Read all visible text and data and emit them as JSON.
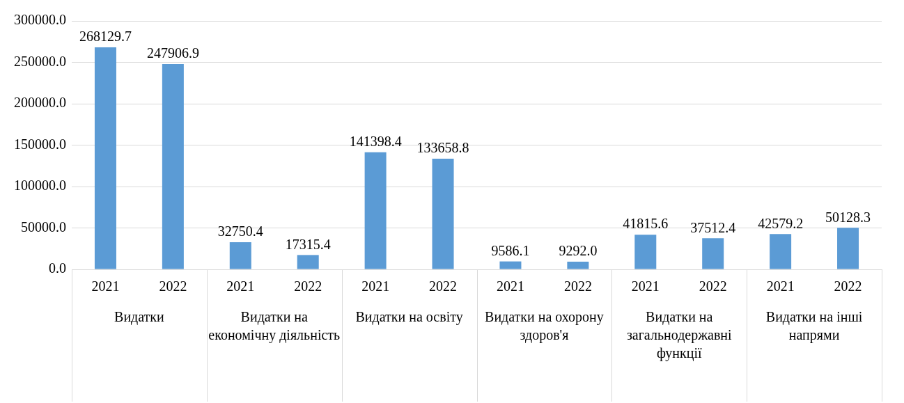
{
  "chart_data": {
    "type": "bar",
    "categories": [
      "2021",
      "2022",
      "2021",
      "2022",
      "2021",
      "2022",
      "2021",
      "2022",
      "2021",
      "2022",
      "2021",
      "2022"
    ],
    "values": [
      268129.7,
      247906.9,
      32750.4,
      17315.4,
      141398.4,
      133658.8,
      9586.1,
      9292.0,
      41815.6,
      37512.4,
      42579.2,
      50128.3
    ],
    "value_labels": [
      "268129.7",
      "247906.9",
      "32750.4",
      "17315.4",
      "141398.4",
      "133658.8",
      "9586.1",
      "9292.0",
      "41815.6",
      "37512.4",
      "42579.2",
      "50128.3"
    ],
    "color": "#5b9bd5",
    "ylim": [
      0,
      300000
    ],
    "yticks": [
      {
        "value": 0,
        "label": "0.0"
      },
      {
        "value": 50000,
        "label": "50000.0"
      },
      {
        "value": 100000,
        "label": "100000.0"
      },
      {
        "value": 150000,
        "label": "150000.0"
      },
      {
        "value": 200000,
        "label": "200000.0"
      },
      {
        "value": 250000,
        "label": "250000.0"
      },
      {
        "value": 300000,
        "label": "300000.0"
      }
    ],
    "grid": "y",
    "annotations": [
      "Видатки",
      "Видатки на економічну діяльність",
      "Видатки на освіту",
      "Видатки на охорону здоров'я",
      "Видатки на загальнодержавні функції",
      "Видатки на інші напрями"
    ]
  }
}
